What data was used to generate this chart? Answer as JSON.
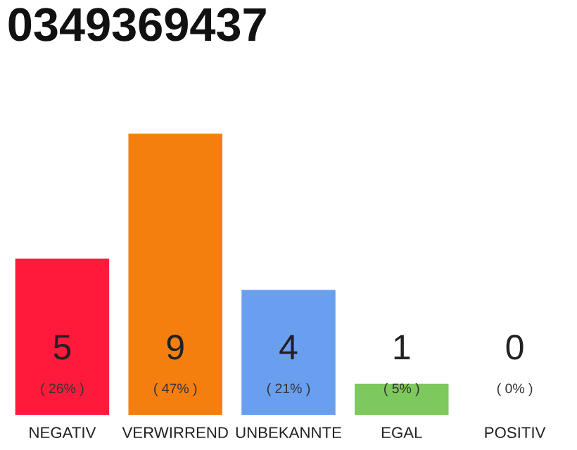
{
  "chart_data": {
    "type": "bar",
    "title": "0349369437",
    "categories": [
      "NEGATIV",
      "VERWIRREND",
      "UNBEKANNTE",
      "EGAL",
      "POSITIV"
    ],
    "values": [
      5,
      9,
      4,
      1,
      0
    ],
    "colors": [
      "#ff1a3c",
      "#f47f0f",
      "#6a9ff0",
      "#7dc95e",
      "#cccccc"
    ],
    "ylim": [
      0,
      9
    ],
    "data_labels": true,
    "annotations": [
      "( 26% )",
      "( 47% )",
      "( 21% )",
      "( 5% )",
      "( 0% )"
    ],
    "grid": false
  }
}
